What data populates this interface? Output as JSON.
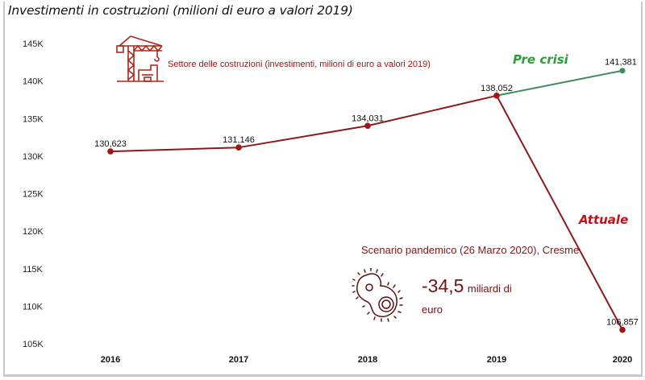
{
  "title": "Investimenti in costruzioni (milioni di euro a valori 2019)",
  "legend": {
    "icon": "crane-building-icon",
    "label": "Settore delle costruzioni (investimenti, milioni di euro a valori 2019)",
    "color": "#a31515"
  },
  "annotations": {
    "pre_crisi": "Pre crisi",
    "attuale": "Attuale",
    "scenario": "Scenario pandemico (26 Marzo 2020), Cresme",
    "scenario_icon": "virus-icon",
    "delta_value": "-34,5",
    "delta_unit_line1": "miliardi di",
    "delta_unit_line2": "euro"
  },
  "colors": {
    "actual_series": "#8b1a1a",
    "precrisis_series": "#3e8a62",
    "pre_crisi_text": "#2e9e3a",
    "attuale_text": "#c0101a"
  },
  "chart_data": {
    "type": "line",
    "title": "Investimenti in costruzioni (milioni di euro a valori 2019)",
    "xlabel": "",
    "ylabel": "",
    "categories": [
      "2016",
      "2017",
      "2018",
      "2019",
      "2020"
    ],
    "ylim": [
      105000,
      145000
    ],
    "yticks": [
      {
        "value": 145000,
        "label": "145K"
      },
      {
        "value": 140000,
        "label": "140K"
      },
      {
        "value": 135000,
        "label": "135K"
      },
      {
        "value": 130000,
        "label": "130K"
      },
      {
        "value": 125000,
        "label": "125K"
      },
      {
        "value": 120000,
        "label": "120K"
      },
      {
        "value": 115000,
        "label": "115K"
      },
      {
        "value": 110000,
        "label": "110K"
      },
      {
        "value": 105000,
        "label": "105K"
      }
    ],
    "grid": false,
    "legend_position": "top-left",
    "series": [
      {
        "name": "Attuale",
        "values": [
          130623,
          131146,
          134031,
          138052,
          106857
        ],
        "labels": [
          "130,623",
          "131,146",
          "134,031",
          "138,052",
          "106,857"
        ]
      },
      {
        "name": "Pre crisi",
        "values": [
          null,
          null,
          null,
          138052,
          141381
        ],
        "labels": [
          null,
          null,
          null,
          null,
          "141,381"
        ]
      }
    ]
  }
}
